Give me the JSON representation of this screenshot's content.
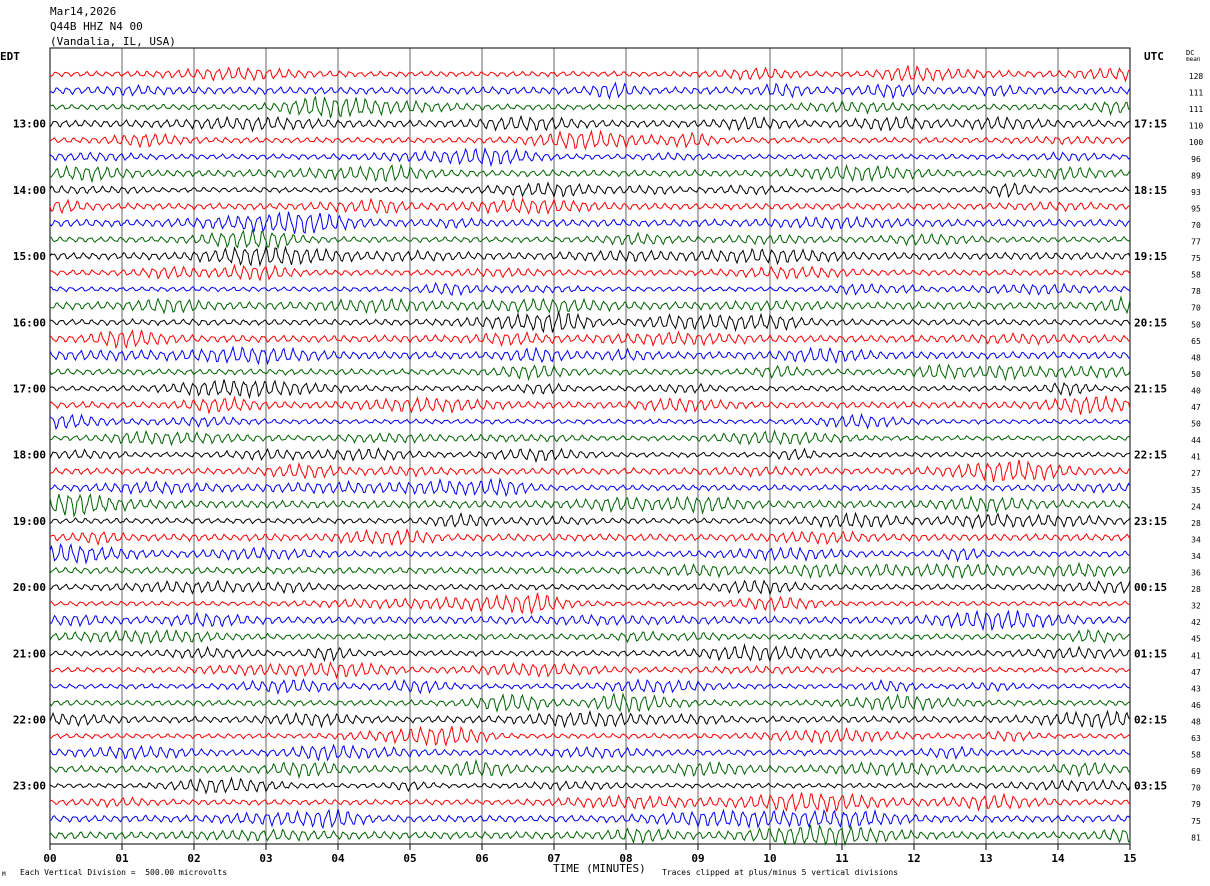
{
  "header": {
    "date": "Mar14,2026",
    "station": "Q44B HHZ N4 00",
    "location": "(Vandalia, IL, USA)"
  },
  "labels": {
    "left_tz": "EDT",
    "right_tz": "UTC",
    "dc_label_top": "DC",
    "dc_label_bottom": "mean",
    "x_title": "TIME (MINUTES)",
    "scale_note": "Each Vertical Division =  500.00 microvolts",
    "clip_note": "Traces clipped at plus/minus 5 vertical divisions",
    "corner_mark": "M"
  },
  "chart_data": {
    "type": "line",
    "title": "Q44B HHZ N4 00",
    "xlabel": "TIME (MINUTES)",
    "xlim": [
      0,
      15
    ],
    "x_ticks": [
      "00",
      "01",
      "02",
      "03",
      "04",
      "05",
      "06",
      "07",
      "08",
      "09",
      "10",
      "11",
      "12",
      "13",
      "14",
      "15"
    ],
    "left_hour_labels": [
      "13:00",
      "14:00",
      "15:00",
      "16:00",
      "17:00",
      "18:00",
      "19:00",
      "20:00",
      "21:00",
      "22:00",
      "23:00"
    ],
    "right_hour_labels": [
      "17:15",
      "18:15",
      "19:15",
      "20:15",
      "21:15",
      "22:15",
      "23:15",
      "00:15",
      "01:15",
      "02:15",
      "03:15"
    ],
    "trace_colors": [
      "#ff0000",
      "#0000ff",
      "#006400",
      "#000000"
    ],
    "first_trace_color_index": 0,
    "dc_offsets": [
      128,
      111,
      111,
      110,
      100,
      96,
      89,
      93,
      95,
      70,
      77,
      75,
      58,
      78,
      70,
      50,
      65,
      48,
      50,
      40,
      47,
      50,
      44,
      41,
      27,
      35,
      24,
      28,
      34,
      34,
      36,
      28,
      32,
      42,
      45,
      41,
      47,
      43,
      46,
      48,
      63,
      58,
      69,
      70,
      79,
      75,
      81
    ],
    "grid": true
  }
}
